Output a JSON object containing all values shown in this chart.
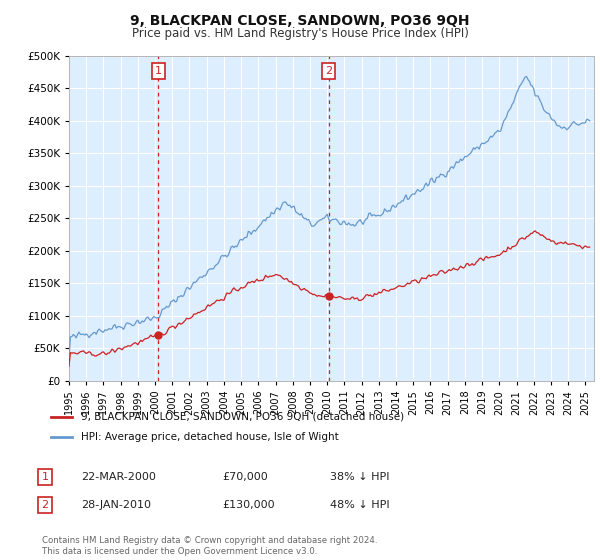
{
  "title": "9, BLACKPAN CLOSE, SANDOWN, PO36 9QH",
  "subtitle": "Price paid vs. HM Land Registry's House Price Index (HPI)",
  "background_color": "#ffffff",
  "plot_bg_color": "#ddeeff",
  "grid_color": "#ffffff",
  "hpi_color": "#6699cc",
  "price_color": "#cc2222",
  "marker1_date": 2000.19,
  "marker1_price": 70000,
  "marker2_date": 2010.08,
  "marker2_price": 130000,
  "legend_line1": "9, BLACKPAN CLOSE, SANDOWN, PO36 9QH (detached house)",
  "legend_line2": "HPI: Average price, detached house, Isle of Wight",
  "ann1_num": "1",
  "ann1_date": "22-MAR-2000",
  "ann1_price": "£70,000",
  "ann1_hpi": "38% ↓ HPI",
  "ann2_num": "2",
  "ann2_date": "28-JAN-2010",
  "ann2_price": "£130,000",
  "ann2_hpi": "48% ↓ HPI",
  "footer": "Contains HM Land Registry data © Crown copyright and database right 2024.\nThis data is licensed under the Open Government Licence v3.0.",
  "ylim": [
    0,
    500000
  ],
  "yticks": [
    0,
    50000,
    100000,
    150000,
    200000,
    250000,
    300000,
    350000,
    400000,
    450000,
    500000
  ],
  "xlim_start": 1995.0,
  "xlim_end": 2025.5,
  "xtick_years": [
    1995,
    1996,
    1997,
    1998,
    1999,
    2000,
    2001,
    2002,
    2003,
    2004,
    2005,
    2006,
    2007,
    2008,
    2009,
    2010,
    2011,
    2012,
    2013,
    2014,
    2015,
    2016,
    2017,
    2018,
    2019,
    2020,
    2021,
    2022,
    2023,
    2024,
    2025
  ]
}
